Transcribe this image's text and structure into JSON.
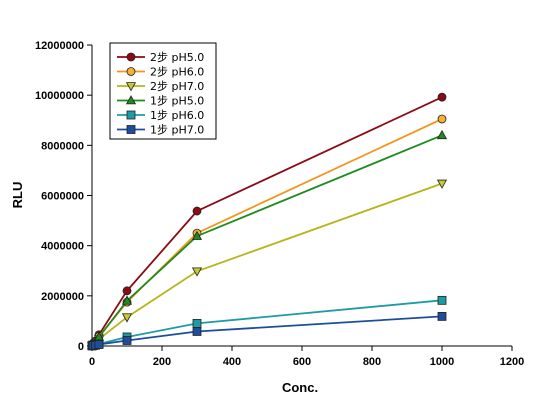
{
  "chart_data": {
    "type": "line",
    "title": "",
    "xlabel": "Conc.",
    "ylabel": "RLU",
    "xlim": [
      0,
      1200
    ],
    "ylim": [
      0,
      12000000
    ],
    "x_ticks": [
      "0",
      "200",
      "400",
      "600",
      "800",
      "1000",
      "1200"
    ],
    "y_ticks": [
      "0",
      "2000000",
      "4000000",
      "6000000",
      "8000000",
      "10000000",
      "12000000"
    ],
    "grid": false,
    "legend_position": "top-left",
    "x": [
      0,
      3,
      10,
      20,
      100,
      300,
      1000
    ],
    "series": [
      {
        "name": "2步 pH5.0",
        "marker": "circle",
        "color": "#8B0A14",
        "fill": "#8B0A14",
        "values": [
          30000,
          100000,
          200000,
          450000,
          2200000,
          5380000,
          9920000
        ]
      },
      {
        "name": "2步 pH6.0",
        "marker": "circle",
        "color": "#F4941C",
        "fill": "#F7B033",
        "values": [
          25000,
          85000,
          170000,
          380000,
          1750000,
          4500000,
          9050000
        ]
      },
      {
        "name": "2步 pH7.0",
        "marker": "triangle-down",
        "color": "#B5B51C",
        "fill": "#C8C832",
        "values": [
          20000,
          60000,
          120000,
          270000,
          1150000,
          2980000,
          6480000
        ]
      },
      {
        "name": "1步 pH5.0",
        "marker": "triangle-up",
        "color": "#1E8B1E",
        "fill": "#1E8B1E",
        "values": [
          25000,
          80000,
          160000,
          360000,
          1800000,
          4380000,
          8400000
        ]
      },
      {
        "name": "1步 pH6.0",
        "marker": "square",
        "color": "#1E9BA5",
        "fill": "#1E9BA5",
        "values": [
          8000,
          20000,
          40000,
          80000,
          360000,
          900000,
          1820000
        ]
      },
      {
        "name": "1步 pH7.0",
        "marker": "square",
        "color": "#1E4E9B",
        "fill": "#1E4E9B",
        "values": [
          5000,
          15000,
          30000,
          60000,
          220000,
          580000,
          1180000
        ]
      }
    ]
  }
}
